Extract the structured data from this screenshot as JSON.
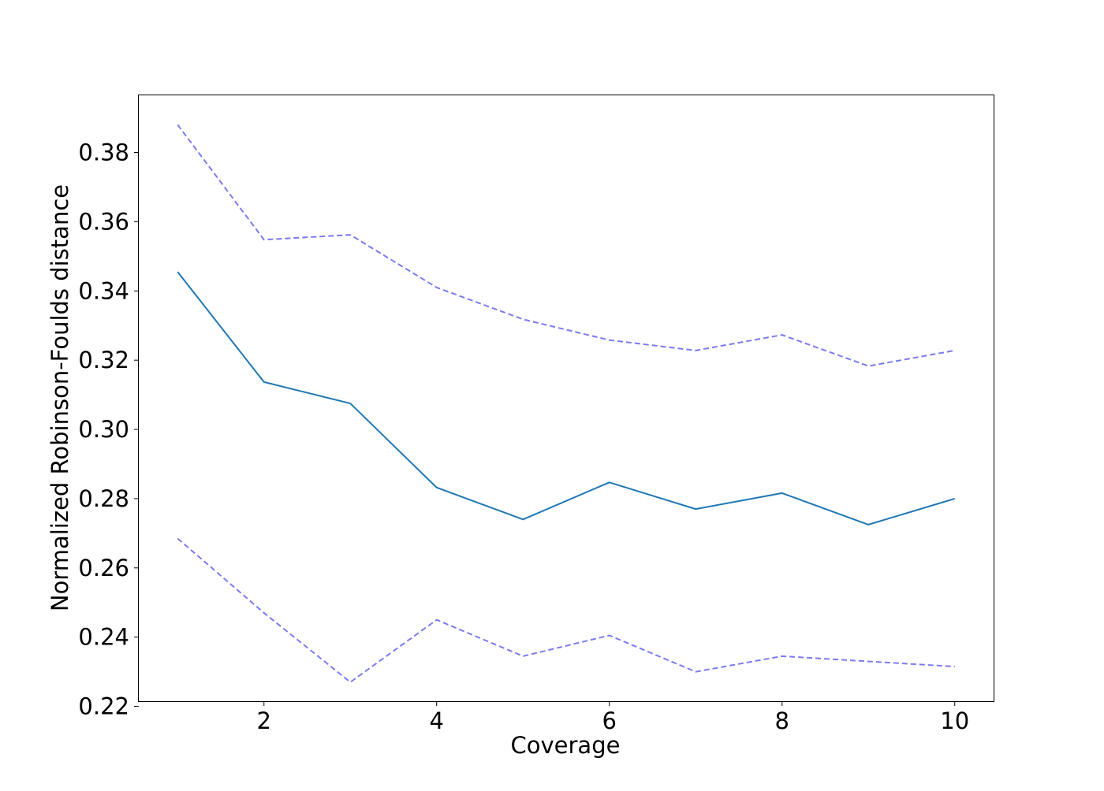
{
  "chart_data": {
    "type": "line",
    "title": "",
    "xlabel": "Coverage",
    "ylabel": "Normalized Robinson-Foulds distance",
    "x": [
      1,
      2,
      3,
      4,
      5,
      6,
      7,
      8,
      9,
      10
    ],
    "xlim": [
      0.55,
      10.45
    ],
    "ylim": [
      0.2215,
      0.3965
    ],
    "x_ticks": [
      2,
      4,
      6,
      8,
      10
    ],
    "x_tick_labels": [
      "2",
      "4",
      "6",
      "8",
      "10"
    ],
    "y_ticks": [
      0.22,
      0.24,
      0.26,
      0.28,
      0.3,
      0.32,
      0.34,
      0.36,
      0.38
    ],
    "y_tick_labels": [
      "0.22",
      "0.24",
      "0.26",
      "0.28",
      "0.30",
      "0.32",
      "0.34",
      "0.36",
      "0.38"
    ],
    "grid": false,
    "legend": "none",
    "series": [
      {
        "style": "solid",
        "color": "#1f77b4",
        "values": [
          0.3455,
          0.3137,
          0.3075,
          0.2832,
          0.274,
          0.2847,
          0.277,
          0.2816,
          0.2725,
          0.28
        ]
      },
      {
        "style": "dashed",
        "color": "#7b7bf0",
        "values": [
          0.388,
          0.3548,
          0.3562,
          0.341,
          0.3318,
          0.3258,
          0.3228,
          0.3273,
          0.3183,
          0.3228
        ]
      },
      {
        "style": "dashed",
        "color": "#7b7bf0",
        "values": [
          0.2685,
          0.247,
          0.227,
          0.245,
          0.2345,
          0.2405,
          0.23,
          0.2345,
          0.233,
          0.2315
        ]
      }
    ]
  }
}
